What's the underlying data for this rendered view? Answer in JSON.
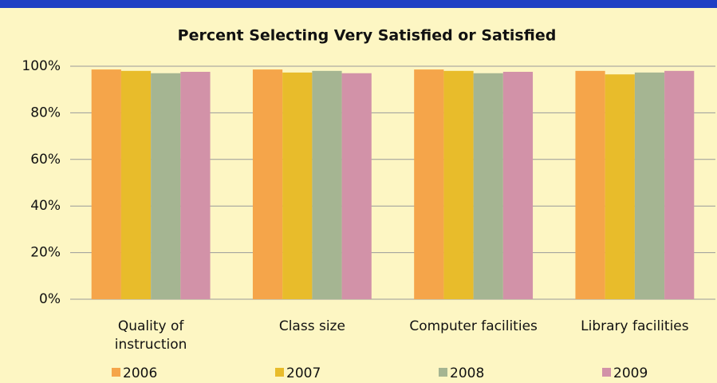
{
  "chart_data": {
    "type": "bar",
    "title": "Percent Selecting Very Satisfied or Satisfied",
    "categories": [
      "Quality of instruction",
      "Class size",
      "Computer facilities",
      "Library facilities"
    ],
    "series": [
      {
        "name": "2006",
        "color": "#f5a54a",
        "values": [
          98.6,
          98.6,
          98.6,
          98
        ]
      },
      {
        "name": "2007",
        "color": "#e8bc2b",
        "values": [
          98,
          97.3,
          98,
          96.5
        ]
      },
      {
        "name": "2008",
        "color": "#a5b592",
        "values": [
          97,
          98,
          97,
          97.3
        ]
      },
      {
        "name": "2009",
        "color": "#d292a8",
        "values": [
          97.6,
          97,
          97.6,
          98
        ]
      }
    ],
    "ylim": [
      0,
      100
    ],
    "yticks": [
      {
        "value": 0,
        "label": "0%"
      },
      {
        "value": 20,
        "label": "20%"
      },
      {
        "value": 40,
        "label": "40%"
      },
      {
        "value": 60,
        "label": "60%"
      },
      {
        "value": 80,
        "label": "80%"
      },
      {
        "value": 100,
        "label": "100%"
      }
    ],
    "grid": true,
    "legend": "bottom"
  }
}
